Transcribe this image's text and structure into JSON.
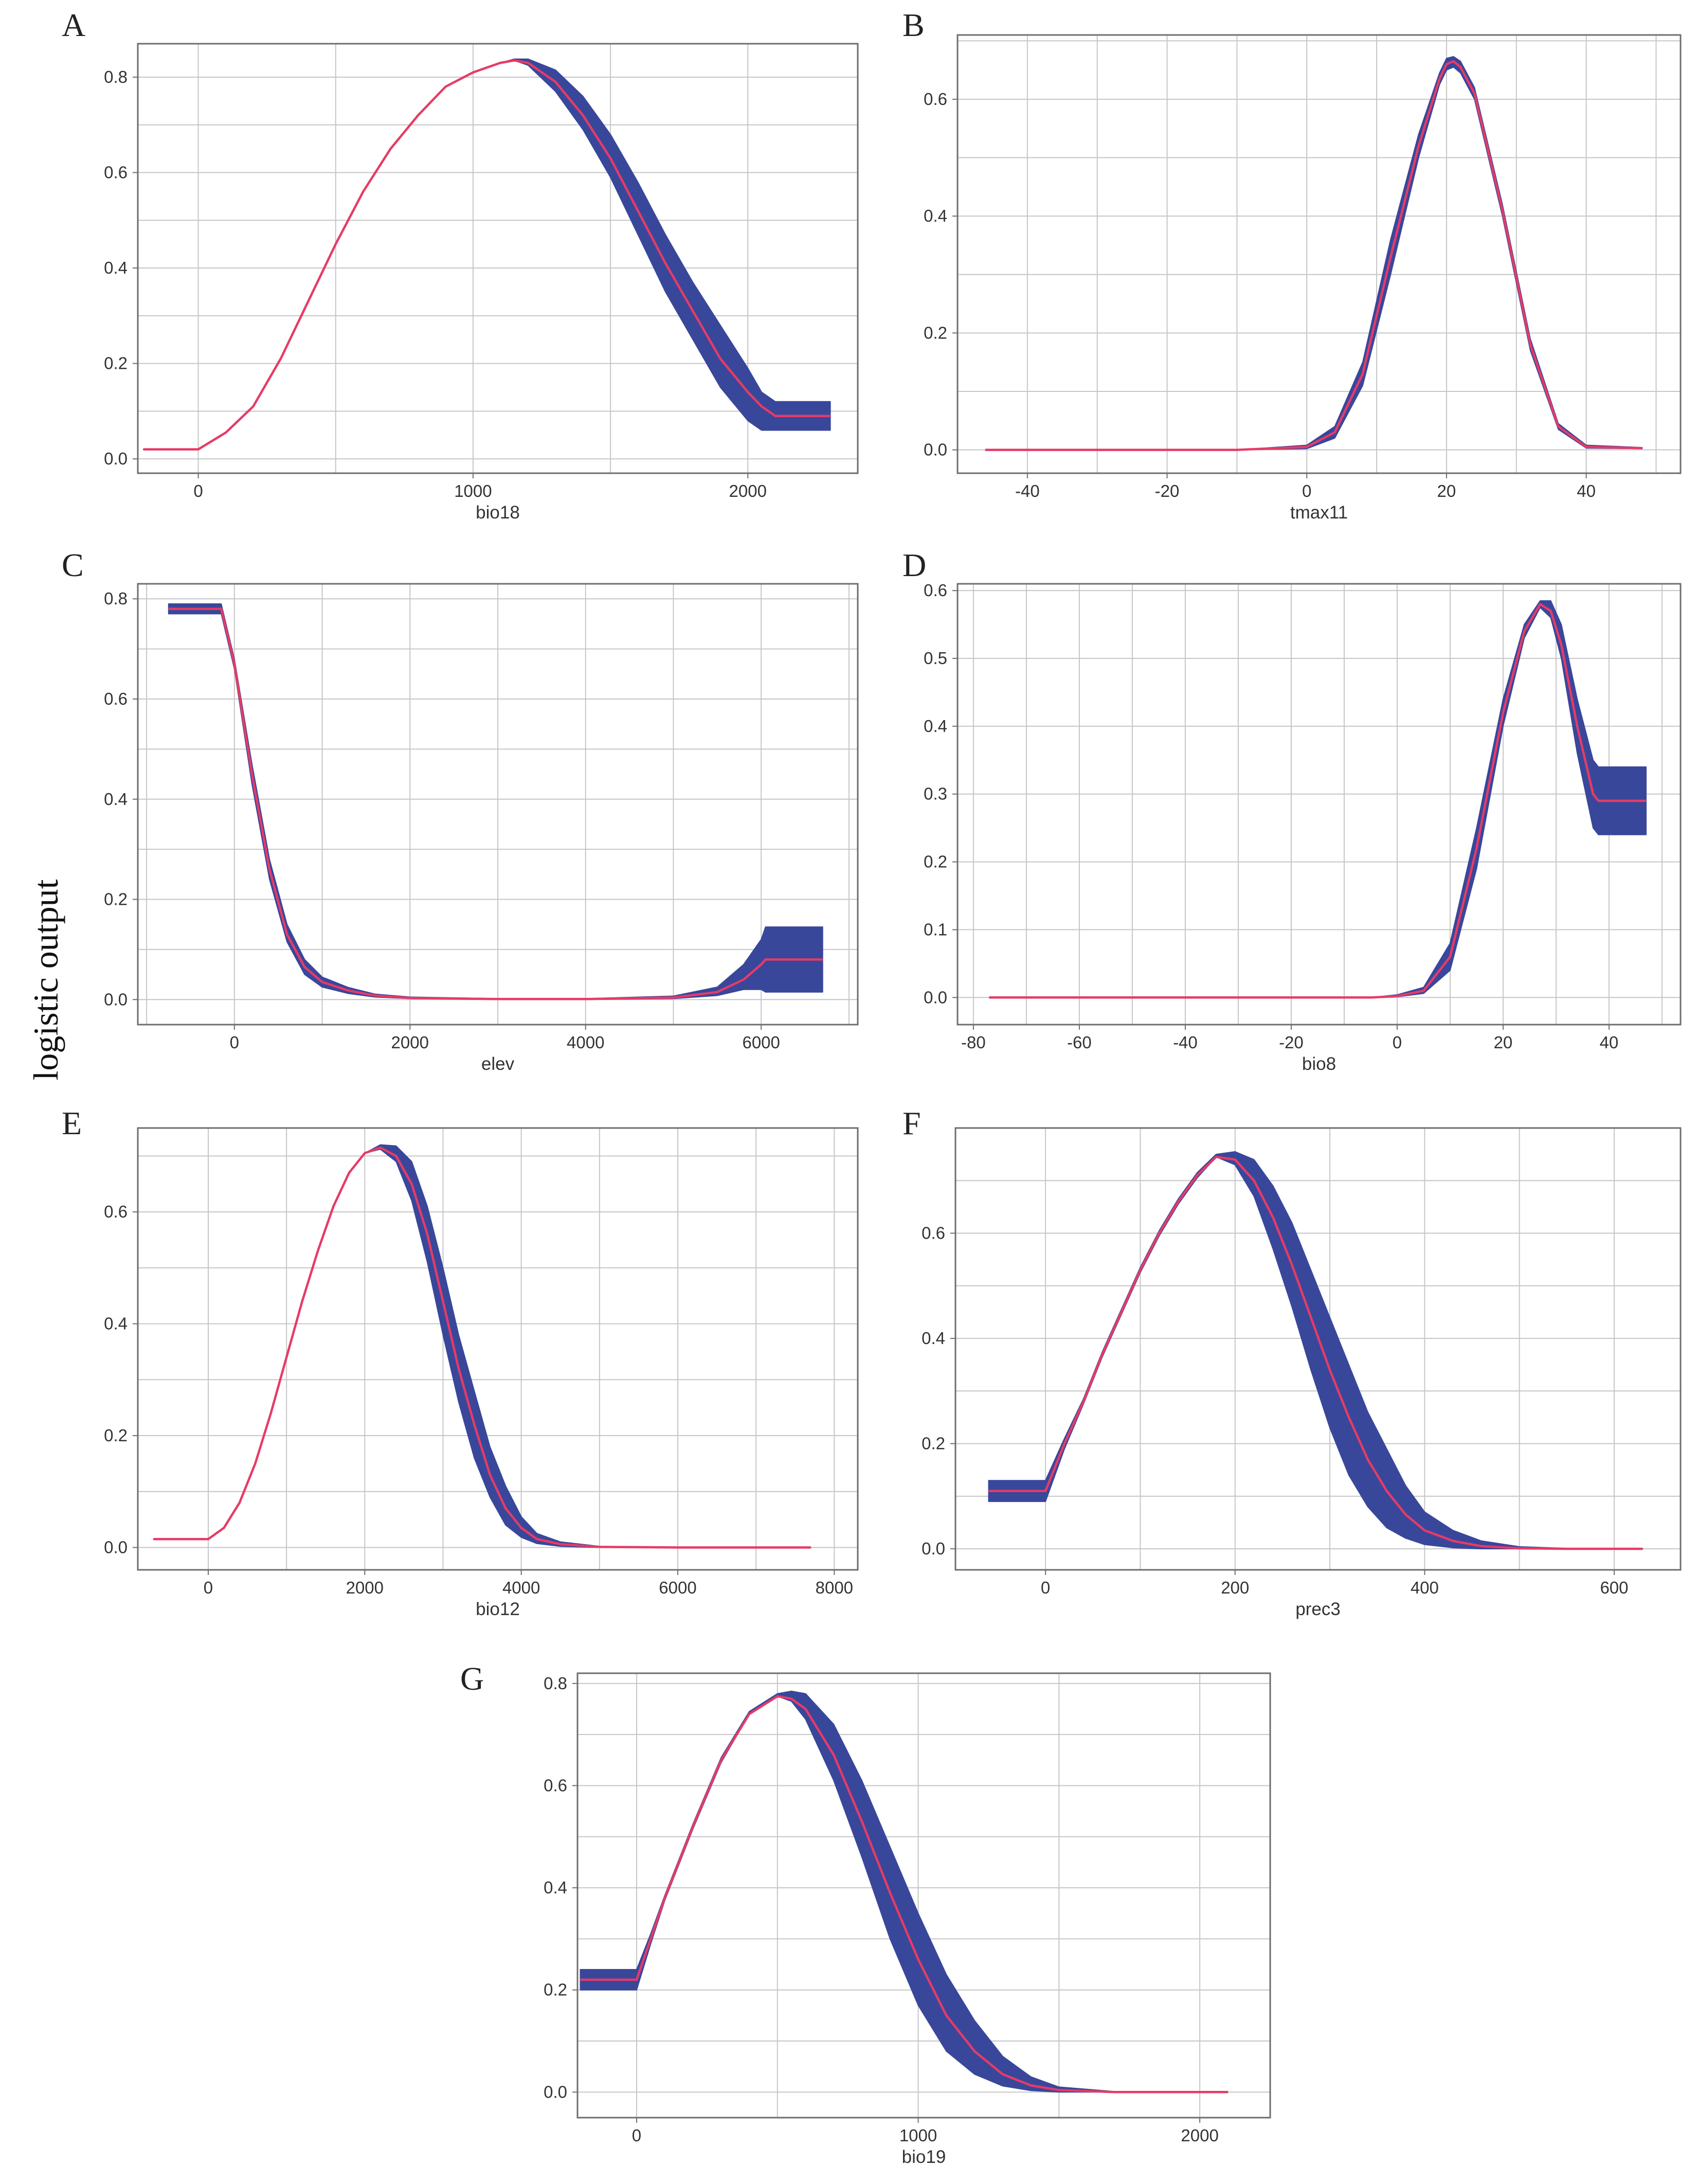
{
  "figure": {
    "ylabel": "logistic output",
    "colors": {
      "band": "#39479b",
      "mean": "#e63b66",
      "grid": "#c6c6c6",
      "frame": "#6e6e6e"
    }
  },
  "chart_data": [
    {
      "type": "line",
      "letter": "A",
      "title": "",
      "xlabel": "bio18",
      "ylabel": "",
      "xlim": [
        -220,
        2400
      ],
      "ylim": [
        -0.03,
        0.87
      ],
      "xticks": [
        0,
        1000,
        2000
      ],
      "yticks": [
        0.0,
        0.2,
        0.4,
        0.6,
        0.8
      ],
      "ytick_format": "0.0",
      "xgrid": [
        -500,
        0,
        500,
        1000,
        1500,
        2000
      ],
      "ygrid": [
        0.0,
        0.1,
        0.2,
        0.3,
        0.4,
        0.5,
        0.6,
        0.7,
        0.8
      ],
      "series": [
        {
          "name": "mean",
          "x": [
            -200,
            0,
            100,
            200,
            300,
            400,
            500,
            600,
            700,
            800,
            900,
            1000,
            1100,
            1150,
            1200,
            1300,
            1400,
            1500,
            1600,
            1700,
            1800,
            1900,
            2000,
            2050,
            2100,
            2300
          ],
          "y": [
            0.02,
            0.02,
            0.055,
            0.11,
            0.21,
            0.33,
            0.45,
            0.56,
            0.65,
            0.72,
            0.78,
            0.81,
            0.83,
            0.835,
            0.83,
            0.79,
            0.72,
            0.63,
            0.52,
            0.41,
            0.31,
            0.21,
            0.14,
            0.11,
            0.09,
            0.09
          ]
        },
        {
          "name": "lower",
          "y": [
            0.02,
            0.02,
            0.055,
            0.11,
            0.21,
            0.33,
            0.45,
            0.56,
            0.65,
            0.72,
            0.78,
            0.81,
            0.83,
            0.835,
            0.825,
            0.77,
            0.69,
            0.59,
            0.47,
            0.35,
            0.25,
            0.15,
            0.08,
            0.06,
            0.06,
            0.06
          ]
        },
        {
          "name": "upper",
          "y": [
            0.02,
            0.02,
            0.055,
            0.11,
            0.21,
            0.33,
            0.45,
            0.56,
            0.65,
            0.72,
            0.78,
            0.81,
            0.83,
            0.838,
            0.838,
            0.815,
            0.76,
            0.68,
            0.58,
            0.47,
            0.37,
            0.28,
            0.19,
            0.14,
            0.12,
            0.12
          ]
        }
      ]
    },
    {
      "type": "line",
      "letter": "B",
      "title": "",
      "xlabel": "tmax11",
      "ylabel": "",
      "xlim": [
        -50,
        53.5
      ],
      "ylim": [
        -0.04,
        0.71
      ],
      "xticks": [
        -40,
        -20,
        0,
        20,
        40
      ],
      "yticks": [
        0.0,
        0.2,
        0.4,
        0.6
      ],
      "ytick_format": "0.0",
      "xgrid": [
        -50,
        -40,
        -30,
        -20,
        -10,
        0,
        10,
        20,
        30,
        40,
        50
      ],
      "ygrid": [
        0.0,
        0.1,
        0.2,
        0.3,
        0.4,
        0.5,
        0.6,
        0.7
      ],
      "series": [
        {
          "name": "mean",
          "x": [
            -46,
            -10,
            0,
            4,
            8,
            12,
            16,
            19,
            20,
            21,
            22,
            24,
            28,
            32,
            36,
            40,
            48
          ],
          "y": [
            0,
            0,
            0.005,
            0.03,
            0.13,
            0.33,
            0.52,
            0.635,
            0.66,
            0.665,
            0.655,
            0.61,
            0.41,
            0.18,
            0.04,
            0.005,
            0.003
          ]
        },
        {
          "name": "lower",
          "y": [
            0,
            0,
            0.002,
            0.02,
            0.11,
            0.3,
            0.5,
            0.625,
            0.65,
            0.655,
            0.645,
            0.6,
            0.4,
            0.17,
            0.035,
            0.003,
            0.002
          ]
        },
        {
          "name": "upper",
          "y": [
            0,
            0,
            0.008,
            0.04,
            0.15,
            0.36,
            0.54,
            0.645,
            0.67,
            0.673,
            0.665,
            0.62,
            0.42,
            0.19,
            0.045,
            0.008,
            0.004
          ]
        }
      ]
    },
    {
      "type": "line",
      "letter": "C",
      "title": "",
      "xlabel": "elev",
      "ylabel": "",
      "xlim": [
        -1100,
        7100
      ],
      "ylim": [
        -0.05,
        0.83
      ],
      "xticks": [
        0,
        2000,
        4000,
        6000
      ],
      "yticks": [
        0.0,
        0.2,
        0.4,
        0.6,
        0.8
      ],
      "ytick_format": "0.0",
      "xgrid": [
        -1000,
        0,
        1000,
        2000,
        3000,
        4000,
        5000,
        6000,
        7000
      ],
      "ygrid": [
        0.0,
        0.1,
        0.2,
        0.3,
        0.4,
        0.5,
        0.6,
        0.7,
        0.8
      ],
      "series": [
        {
          "name": "mean",
          "x": [
            -750,
            -150,
            0,
            200,
            400,
            600,
            800,
            1000,
            1300,
            1600,
            2000,
            3000,
            4000,
            5000,
            5500,
            5800,
            6000,
            6050,
            6700
          ],
          "y": [
            0.78,
            0.78,
            0.67,
            0.45,
            0.26,
            0.13,
            0.065,
            0.035,
            0.018,
            0.008,
            0.003,
            0.001,
            0.001,
            0.004,
            0.015,
            0.04,
            0.07,
            0.08,
            0.08
          ]
        },
        {
          "name": "lower",
          "y": [
            0.77,
            0.77,
            0.66,
            0.43,
            0.24,
            0.115,
            0.05,
            0.025,
            0.012,
            0.005,
            0.002,
            0.0,
            0.0,
            0.002,
            0.008,
            0.02,
            0.02,
            0.015,
            0.015
          ]
        },
        {
          "name": "upper",
          "y": [
            0.79,
            0.79,
            0.68,
            0.47,
            0.28,
            0.15,
            0.08,
            0.045,
            0.024,
            0.011,
            0.005,
            0.002,
            0.002,
            0.007,
            0.025,
            0.07,
            0.12,
            0.145,
            0.145
          ]
        }
      ]
    },
    {
      "type": "line",
      "letter": "D",
      "title": "",
      "xlabel": "bio8",
      "ylabel": "",
      "xlim": [
        -83,
        53.5
      ],
      "ylim": [
        -0.04,
        0.61
      ],
      "xticks": [
        -80,
        -60,
        -40,
        -20,
        0,
        20,
        40
      ],
      "yticks": [
        0.0,
        0.1,
        0.2,
        0.3,
        0.4,
        0.5,
        0.6
      ],
      "ytick_format": "0.0",
      "xgrid": [
        -80,
        -70,
        -60,
        -50,
        -40,
        -30,
        -20,
        -10,
        0,
        10,
        20,
        30,
        40,
        50
      ],
      "ygrid": [
        0.0,
        0.1,
        0.2,
        0.3,
        0.4,
        0.5,
        0.6
      ],
      "series": [
        {
          "name": "mean",
          "x": [
            -77,
            -5,
            0,
            5,
            10,
            15,
            20,
            24,
            27,
            29,
            31,
            34,
            37,
            38,
            47
          ],
          "y": [
            0,
            0,
            0.002,
            0.01,
            0.06,
            0.22,
            0.42,
            0.54,
            0.58,
            0.57,
            0.52,
            0.4,
            0.3,
            0.29,
            0.29
          ]
        },
        {
          "name": "lower",
          "y": [
            0,
            0,
            0.001,
            0.006,
            0.04,
            0.19,
            0.4,
            0.53,
            0.575,
            0.56,
            0.5,
            0.36,
            0.25,
            0.24,
            0.24
          ]
        },
        {
          "name": "upper",
          "y": [
            0,
            0,
            0.004,
            0.015,
            0.08,
            0.25,
            0.44,
            0.55,
            0.585,
            0.585,
            0.55,
            0.44,
            0.35,
            0.34,
            0.34
          ]
        }
      ]
    },
    {
      "type": "line",
      "letter": "E",
      "title": "",
      "xlabel": "bio12",
      "ylabel": "",
      "xlim": [
        -900,
        8300
      ],
      "ylim": [
        -0.04,
        0.75
      ],
      "xticks": [
        0,
        2000,
        4000,
        6000,
        8000
      ],
      "yticks": [
        0.0,
        0.2,
        0.4,
        0.6
      ],
      "ytick_format": "0.0",
      "xgrid": [
        -1000,
        0,
        1000,
        2000,
        3000,
        4000,
        5000,
        6000,
        7000,
        8000
      ],
      "ygrid": [
        0.0,
        0.1,
        0.2,
        0.3,
        0.4,
        0.5,
        0.6,
        0.7
      ],
      "series": [
        {
          "name": "mean",
          "x": [
            -700,
            0,
            200,
            400,
            600,
            800,
            1000,
            1200,
            1400,
            1600,
            1800,
            2000,
            2200,
            2400,
            2600,
            2800,
            3000,
            3200,
            3400,
            3600,
            3800,
            4000,
            4200,
            4500,
            5000,
            6000,
            7700
          ],
          "y": [
            0.015,
            0.015,
            0.035,
            0.08,
            0.15,
            0.24,
            0.34,
            0.44,
            0.53,
            0.61,
            0.67,
            0.705,
            0.715,
            0.7,
            0.65,
            0.56,
            0.44,
            0.32,
            0.22,
            0.13,
            0.07,
            0.035,
            0.015,
            0.006,
            0.001,
            0,
            0
          ]
        },
        {
          "name": "lower",
          "y": [
            0.015,
            0.015,
            0.035,
            0.08,
            0.15,
            0.24,
            0.34,
            0.44,
            0.53,
            0.61,
            0.67,
            0.705,
            0.712,
            0.69,
            0.62,
            0.51,
            0.38,
            0.26,
            0.16,
            0.09,
            0.04,
            0.018,
            0.007,
            0.002,
            0,
            0,
            0
          ]
        },
        {
          "name": "upper",
          "y": [
            0.015,
            0.015,
            0.035,
            0.08,
            0.15,
            0.24,
            0.34,
            0.44,
            0.53,
            0.61,
            0.67,
            0.705,
            0.72,
            0.718,
            0.69,
            0.61,
            0.5,
            0.38,
            0.28,
            0.18,
            0.11,
            0.055,
            0.025,
            0.01,
            0.002,
            0,
            0
          ]
        }
      ]
    },
    {
      "type": "line",
      "letter": "F",
      "title": "",
      "xlabel": "prec3",
      "ylabel": "",
      "xlim": [
        -95,
        670
      ],
      "ylim": [
        -0.04,
        0.8
      ],
      "xticks": [
        0,
        200,
        400,
        600
      ],
      "yticks": [
        0.0,
        0.2,
        0.4,
        0.6
      ],
      "ytick_format": "0.0",
      "xgrid": [
        -100,
        0,
        100,
        200,
        300,
        400,
        500,
        600
      ],
      "ygrid": [
        0.0,
        0.1,
        0.2,
        0.3,
        0.4,
        0.5,
        0.6,
        0.7
      ],
      "series": [
        {
          "name": "mean",
          "x": [
            -60,
            0,
            20,
            40,
            60,
            80,
            100,
            120,
            140,
            160,
            180,
            200,
            220,
            240,
            260,
            280,
            300,
            320,
            340,
            360,
            380,
            400,
            430,
            460,
            500,
            550,
            630
          ],
          "y": [
            0.11,
            0.11,
            0.2,
            0.28,
            0.37,
            0.45,
            0.53,
            0.6,
            0.66,
            0.71,
            0.745,
            0.74,
            0.7,
            0.63,
            0.54,
            0.44,
            0.34,
            0.25,
            0.17,
            0.11,
            0.065,
            0.035,
            0.015,
            0.005,
            0.001,
            0,
            0
          ]
        },
        {
          "name": "lower",
          "y": [
            0.09,
            0.09,
            0.19,
            0.275,
            0.365,
            0.445,
            0.525,
            0.595,
            0.655,
            0.705,
            0.745,
            0.73,
            0.67,
            0.57,
            0.46,
            0.34,
            0.23,
            0.14,
            0.08,
            0.04,
            0.02,
            0.008,
            0.002,
            0,
            0,
            0,
            0
          ]
        },
        {
          "name": "upper",
          "y": [
            0.13,
            0.13,
            0.21,
            0.285,
            0.375,
            0.455,
            0.535,
            0.605,
            0.665,
            0.715,
            0.75,
            0.755,
            0.74,
            0.69,
            0.62,
            0.53,
            0.44,
            0.35,
            0.26,
            0.19,
            0.12,
            0.07,
            0.035,
            0.015,
            0.004,
            0.001,
            0
          ]
        }
      ]
    },
    {
      "type": "line",
      "letter": "G",
      "title": "",
      "xlabel": "bio19",
      "ylabel": "",
      "xlim": [
        -210,
        2250
      ],
      "ylim": [
        -0.05,
        0.82
      ],
      "xticks": [
        0,
        1000,
        2000
      ],
      "yticks": [
        0.0,
        0.2,
        0.4,
        0.6,
        0.8
      ],
      "ytick_format": "0.0",
      "xgrid": [
        -500,
        0,
        500,
        1000,
        1500,
        2000
      ],
      "ygrid": [
        0.0,
        0.1,
        0.2,
        0.3,
        0.4,
        0.5,
        0.6,
        0.7,
        0.8
      ],
      "series": [
        {
          "name": "mean",
          "x": [
            -200,
            0,
            50,
            100,
            200,
            300,
            400,
            500,
            550,
            600,
            700,
            800,
            900,
            1000,
            1100,
            1200,
            1300,
            1400,
            1500,
            1700,
            2100
          ],
          "y": [
            0.22,
            0.22,
            0.3,
            0.38,
            0.52,
            0.65,
            0.74,
            0.775,
            0.77,
            0.75,
            0.66,
            0.53,
            0.39,
            0.26,
            0.15,
            0.08,
            0.035,
            0.013,
            0.004,
            0,
            0
          ]
        },
        {
          "name": "lower",
          "y": [
            0.2,
            0.2,
            0.29,
            0.375,
            0.515,
            0.645,
            0.74,
            0.775,
            0.765,
            0.73,
            0.61,
            0.46,
            0.3,
            0.17,
            0.08,
            0.035,
            0.012,
            0.003,
            0,
            0,
            0
          ]
        },
        {
          "name": "upper",
          "y": [
            0.24,
            0.24,
            0.31,
            0.385,
            0.525,
            0.655,
            0.745,
            0.78,
            0.785,
            0.78,
            0.72,
            0.61,
            0.48,
            0.35,
            0.23,
            0.14,
            0.07,
            0.03,
            0.01,
            0.001,
            0
          ]
        }
      ]
    }
  ]
}
